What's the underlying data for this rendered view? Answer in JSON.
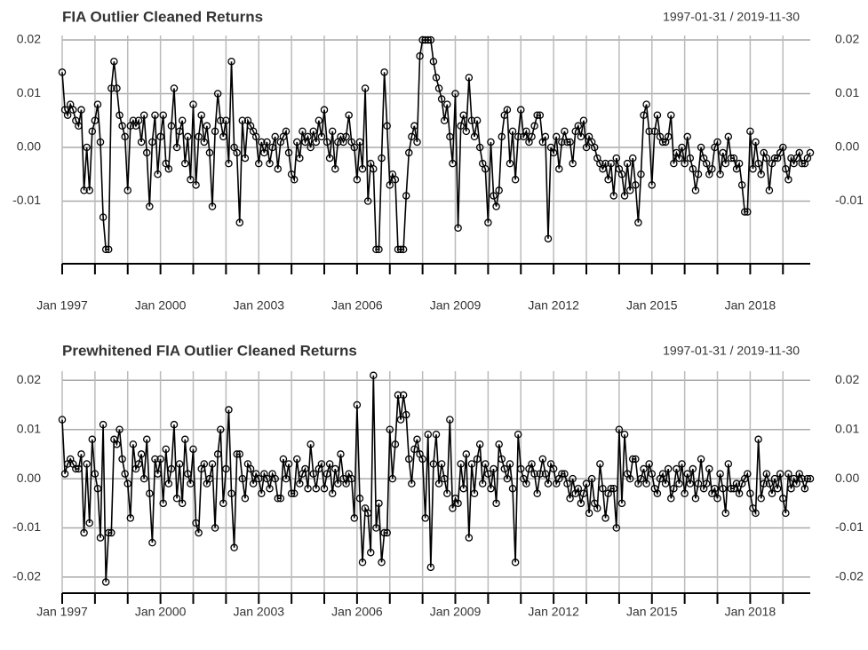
{
  "chart_data": [
    {
      "type": "line",
      "title": "FIA Outlier Cleaned Returns",
      "subtitle": "1997-01-31 / 2019-11-30",
      "marker": "circle",
      "grid": true,
      "categories": [
        "Jan 1997",
        null,
        null,
        null,
        null,
        null,
        null,
        null,
        null,
        null,
        null,
        null,
        null,
        null,
        null,
        null,
        null,
        null,
        null,
        null,
        null,
        null,
        null,
        null,
        null,
        null,
        null,
        null,
        null,
        null,
        null,
        null,
        null,
        null,
        null,
        null,
        "Jan 2000",
        null,
        null,
        null,
        null,
        null,
        null,
        null,
        null,
        null,
        null,
        null,
        null,
        null,
        null,
        null,
        null,
        null,
        null,
        null,
        null,
        null,
        null,
        null,
        null,
        null,
        null,
        null,
        null,
        null,
        null,
        null,
        null,
        null,
        null,
        null,
        "Jan 2003",
        null,
        null,
        null,
        null,
        null,
        null,
        null,
        null,
        null,
        null,
        null,
        null,
        null,
        null,
        null,
        null,
        null,
        null,
        null,
        null,
        null,
        null,
        null,
        null,
        null,
        null,
        null,
        null,
        null,
        null,
        null,
        null,
        null,
        null,
        null,
        "Jan 2006",
        null,
        null,
        null,
        null,
        null,
        null,
        null,
        null,
        null,
        null,
        null,
        null,
        null,
        null,
        null,
        null,
        null,
        null,
        null,
        null,
        null,
        null,
        null,
        null,
        null,
        null,
        null,
        null,
        null,
        null,
        null,
        null,
        null,
        null,
        null,
        "Jan 2009",
        null,
        null,
        null,
        null,
        null,
        null,
        null,
        null,
        null,
        null,
        null,
        null,
        null,
        null,
        null,
        null,
        null,
        null,
        null,
        null,
        null,
        null,
        null,
        null,
        null,
        null,
        null,
        null,
        null,
        null,
        null,
        null,
        null,
        null,
        null,
        "Jan 2012",
        null,
        null,
        null,
        null,
        null,
        null,
        null,
        null,
        null,
        null,
        null,
        null,
        null,
        null,
        null,
        null,
        null,
        null,
        null,
        null,
        null,
        null,
        null,
        null,
        null,
        null,
        null,
        null,
        null,
        null,
        null,
        null,
        null,
        null,
        null,
        "Jan 2015",
        null,
        null,
        null,
        null,
        null,
        null,
        null,
        null,
        null,
        null,
        null,
        null,
        null,
        null,
        null,
        null,
        null,
        null,
        null,
        null,
        null,
        null,
        null,
        null,
        null,
        null,
        null,
        null,
        null,
        null,
        null,
        null,
        null,
        null,
        null,
        "Jan 2018",
        null,
        null,
        null,
        null,
        null,
        null,
        null,
        null,
        null,
        null,
        null,
        null,
        null,
        null,
        null,
        null,
        null,
        null,
        null,
        null,
        null,
        null
      ],
      "series": [
        {
          "color": "#000000",
          "values": [
            0.014,
            0.007,
            0.006,
            0.008,
            0.007,
            0.005,
            0.004,
            0.007,
            -0.008,
            0.0,
            -0.008,
            0.003,
            0.005,
            0.008,
            0.001,
            -0.013,
            -0.019,
            -0.019,
            0.011,
            0.016,
            0.011,
            0.006,
            0.004,
            0.002,
            -0.008,
            0.004,
            0.005,
            0.004,
            0.005,
            0.001,
            0.006,
            -0.001,
            -0.011,
            0.001,
            0.006,
            -0.005,
            0.002,
            0.006,
            -0.003,
            -0.004,
            0.004,
            0.011,
            0.0,
            0.003,
            0.005,
            -0.003,
            0.002,
            -0.006,
            0.008,
            -0.007,
            0.002,
            0.006,
            0.001,
            0.004,
            -0.001,
            -0.011,
            0.003,
            0.01,
            0.005,
            0.002,
            0.005,
            -0.003,
            0.016,
            0.0,
            -0.001,
            -0.014,
            0.005,
            -0.002,
            0.005,
            0.004,
            0.003,
            0.002,
            -0.003,
            0.001,
            -0.001,
            0.001,
            -0.003,
            0.0,
            0.002,
            -0.004,
            0.001,
            0.002,
            0.003,
            -0.001,
            -0.005,
            -0.006,
            0.001,
            -0.002,
            0.003,
            0.001,
            0.002,
            0.0,
            0.003,
            0.001,
            0.005,
            0.002,
            0.007,
            0.001,
            -0.002,
            0.003,
            -0.004,
            0.001,
            0.002,
            0.001,
            0.002,
            0.006,
            0.001,
            0.0,
            -0.006,
            0.001,
            -0.004,
            0.011,
            -0.01,
            -0.003,
            -0.004,
            -0.019,
            -0.019,
            -0.002,
            0.014,
            0.004,
            -0.007,
            -0.005,
            -0.006,
            -0.019,
            -0.019,
            -0.019,
            -0.009,
            -0.001,
            0.002,
            0.004,
            0.001,
            0.017,
            0.02,
            0.02,
            0.02,
            0.02,
            0.016,
            0.013,
            0.011,
            0.009,
            0.005,
            0.008,
            0.002,
            -0.003,
            0.01,
            -0.015,
            0.004,
            0.006,
            0.003,
            0.013,
            0.005,
            0.002,
            0.005,
            0.0,
            -0.003,
            -0.004,
            -0.014,
            0.001,
            -0.009,
            -0.011,
            -0.008,
            0.002,
            0.006,
            0.007,
            -0.003,
            0.003,
            -0.006,
            0.002,
            0.007,
            0.002,
            0.003,
            0.001,
            0.002,
            0.004,
            0.006,
            0.006,
            0.001,
            0.002,
            -0.017,
            0.0,
            -0.001,
            0.002,
            -0.004,
            0.001,
            0.003,
            0.001,
            0.001,
            -0.003,
            0.003,
            0.004,
            0.002,
            0.005,
            0.0,
            0.002,
            0.001,
            0.0,
            -0.002,
            -0.003,
            -0.004,
            -0.003,
            -0.006,
            -0.003,
            -0.009,
            -0.002,
            -0.004,
            -0.005,
            -0.009,
            -0.003,
            -0.008,
            -0.002,
            -0.007,
            -0.014,
            -0.005,
            0.006,
            0.008,
            0.003,
            -0.007,
            0.003,
            0.006,
            0.002,
            0.001,
            0.001,
            0.002,
            0.006,
            -0.003,
            -0.001,
            -0.002,
            0.0,
            -0.003,
            0.002,
            -0.002,
            -0.004,
            -0.008,
            -0.005,
            0.0,
            -0.002,
            -0.003,
            -0.005,
            -0.004,
            0.0,
            0.001,
            -0.005,
            -0.001,
            -0.003,
            0.002,
            -0.002,
            -0.002,
            -0.004,
            -0.003,
            -0.007,
            -0.012,
            -0.012,
            0.003,
            -0.004,
            0.001,
            -0.003,
            -0.005,
            -0.001,
            -0.002,
            -0.008,
            -0.003,
            -0.002,
            -0.002,
            -0.001,
            0.0,
            -0.004,
            -0.006,
            -0.002,
            -0.003,
            -0.002,
            -0.001,
            -0.003,
            -0.003,
            -0.002,
            -0.001
          ]
        }
      ],
      "ylim": [
        -0.0205,
        0.0205
      ],
      "yticks": [
        {
          "value": -0.01,
          "label": "-0.01"
        },
        {
          "value": 0,
          "label": "0.00"
        },
        {
          "value": 0.01,
          "label": "0.01"
        },
        {
          "value": 0.02,
          "label": "0.02"
        }
      ]
    },
    {
      "type": "line",
      "title": "Prewhitened FIA Outlier Cleaned Returns",
      "subtitle": "1997-01-31 / 2019-11-30",
      "marker": "circle",
      "grid": true,
      "categories": [
        "Jan 1997",
        null,
        null,
        null,
        null,
        null,
        null,
        null,
        null,
        null,
        null,
        null,
        null,
        null,
        null,
        null,
        null,
        null,
        null,
        null,
        null,
        null,
        null,
        null,
        null,
        null,
        null,
        null,
        null,
        null,
        null,
        null,
        null,
        null,
        null,
        null,
        "Jan 2000",
        null,
        null,
        null,
        null,
        null,
        null,
        null,
        null,
        null,
        null,
        null,
        null,
        null,
        null,
        null,
        null,
        null,
        null,
        null,
        null,
        null,
        null,
        null,
        null,
        null,
        null,
        null,
        null,
        null,
        null,
        null,
        null,
        null,
        null,
        null,
        "Jan 2003",
        null,
        null,
        null,
        null,
        null,
        null,
        null,
        null,
        null,
        null,
        null,
        null,
        null,
        null,
        null,
        null,
        null,
        null,
        null,
        null,
        null,
        null,
        null,
        null,
        null,
        null,
        null,
        null,
        null,
        null,
        null,
        null,
        null,
        null,
        null,
        "Jan 2006",
        null,
        null,
        null,
        null,
        null,
        null,
        null,
        null,
        null,
        null,
        null,
        null,
        null,
        null,
        null,
        null,
        null,
        null,
        null,
        null,
        null,
        null,
        null,
        null,
        null,
        null,
        null,
        null,
        null,
        null,
        null,
        null,
        null,
        null,
        null,
        "Jan 2009",
        null,
        null,
        null,
        null,
        null,
        null,
        null,
        null,
        null,
        null,
        null,
        null,
        null,
        null,
        null,
        null,
        null,
        null,
        null,
        null,
        null,
        null,
        null,
        null,
        null,
        null,
        null,
        null,
        null,
        null,
        null,
        null,
        null,
        null,
        null,
        "Jan 2012",
        null,
        null,
        null,
        null,
        null,
        null,
        null,
        null,
        null,
        null,
        null,
        null,
        null,
        null,
        null,
        null,
        null,
        null,
        null,
        null,
        null,
        null,
        null,
        null,
        null,
        null,
        null,
        null,
        null,
        null,
        null,
        null,
        null,
        null,
        null,
        "Jan 2015",
        null,
        null,
        null,
        null,
        null,
        null,
        null,
        null,
        null,
        null,
        null,
        null,
        null,
        null,
        null,
        null,
        null,
        null,
        null,
        null,
        null,
        null,
        null,
        null,
        null,
        null,
        null,
        null,
        null,
        null,
        null,
        null,
        null,
        null,
        null,
        "Jan 2018",
        null,
        null,
        null,
        null,
        null,
        null,
        null,
        null,
        null,
        null,
        null,
        null,
        null,
        null,
        null,
        null,
        null,
        null,
        null,
        null,
        null,
        null
      ],
      "series": [
        {
          "color": "#000000",
          "values": [
            0.012,
            0.001,
            0.003,
            0.004,
            0.003,
            0.002,
            0.002,
            0.005,
            -0.011,
            0.003,
            -0.009,
            0.008,
            0.001,
            -0.002,
            -0.012,
            0.011,
            -0.021,
            -0.011,
            -0.011,
            0.008,
            0.007,
            0.01,
            0.004,
            0.001,
            -0.001,
            -0.008,
            0.007,
            0.002,
            0.003,
            0.005,
            0.0,
            0.008,
            -0.003,
            -0.013,
            0.004,
            0.001,
            0.004,
            -0.005,
            0.006,
            -0.001,
            0.002,
            0.011,
            -0.004,
            0.003,
            -0.005,
            0.008,
            0.001,
            -0.001,
            0.006,
            -0.009,
            -0.011,
            0.002,
            0.003,
            -0.001,
            0.0,
            0.003,
            -0.01,
            0.005,
            0.01,
            -0.005,
            0.002,
            0.014,
            -0.003,
            -0.014,
            0.005,
            0.005,
            0.0,
            -0.004,
            0.003,
            0.002,
            -0.001,
            0.001,
            0.0,
            -0.003,
            0.001,
            0.0,
            -0.002,
            0.001,
            0.0,
            -0.004,
            -0.004,
            0.004,
            0.0,
            0.003,
            -0.003,
            -0.003,
            0.004,
            -0.001,
            0.001,
            0.002,
            -0.002,
            0.007,
            0.001,
            -0.002,
            0.002,
            0.003,
            -0.002,
            0.001,
            0.003,
            -0.003,
            0.002,
            -0.001,
            0.005,
            0.0,
            -0.001,
            0.001,
            0.0,
            -0.008,
            0.015,
            -0.004,
            -0.017,
            -0.006,
            -0.007,
            -0.015,
            0.021,
            -0.01,
            -0.005,
            -0.017,
            -0.011,
            -0.011,
            0.01,
            0.0,
            0.007,
            0.017,
            0.012,
            0.017,
            0.013,
            0.004,
            -0.001,
            0.006,
            0.008,
            0.005,
            0.004,
            -0.008,
            0.009,
            -0.018,
            0.003,
            0.009,
            -0.001,
            0.003,
            0.0,
            -0.003,
            0.012,
            -0.006,
            -0.004,
            -0.005,
            0.003,
            -0.002,
            0.005,
            -0.012,
            0.003,
            -0.003,
            0.004,
            0.007,
            -0.001,
            0.003,
            0.001,
            -0.002,
            0.002,
            -0.005,
            0.007,
            0.004,
            0.002,
            0.0,
            0.003,
            -0.002,
            -0.017,
            0.009,
            0.002,
            0.0,
            -0.001,
            0.002,
            0.003,
            0.001,
            -0.003,
            0.001,
            0.004,
            0.001,
            -0.001,
            0.003,
            0.002,
            -0.001,
            0.0,
            0.001,
            0.001,
            -0.001,
            -0.004,
            0.0,
            -0.003,
            -0.002,
            -0.005,
            -0.003,
            -0.001,
            -0.007,
            0.0,
            -0.005,
            -0.006,
            0.003,
            -0.002,
            -0.008,
            -0.003,
            -0.002,
            -0.002,
            -0.01,
            0.01,
            -0.005,
            0.009,
            0.001,
            0.0,
            0.004,
            0.004,
            -0.001,
            0.0,
            0.002,
            -0.001,
            0.003,
            0.001,
            -0.002,
            -0.003,
            0.0,
            0.001,
            -0.001,
            0.002,
            -0.004,
            -0.002,
            0.002,
            -0.001,
            0.003,
            -0.003,
            0.001,
            -0.001,
            0.002,
            -0.004,
            -0.001,
            0.004,
            -0.002,
            -0.001,
            0.002,
            -0.003,
            -0.002,
            -0.004,
            0.001,
            -0.002,
            -0.007,
            0.003,
            -0.002,
            -0.002,
            -0.001,
            -0.003,
            -0.001,
            0.0,
            0.001,
            -0.003,
            -0.006,
            -0.007,
            0.008,
            -0.004,
            -0.001,
            0.001,
            -0.001,
            -0.003,
            0.0,
            -0.002,
            0.001,
            -0.004,
            -0.007,
            0.001,
            -0.002,
            0.0,
            -0.001,
            0.001,
            0.0,
            -0.002,
            0.0,
            0.0
          ]
        }
      ],
      "ylim": [
        -0.022,
        0.0215
      ],
      "yticks": [
        {
          "value": -0.02,
          "label": "-0.02"
        },
        {
          "value": -0.01,
          "label": "-0.01"
        },
        {
          "value": 0,
          "label": "0.00"
        },
        {
          "value": 0.01,
          "label": "0.01"
        },
        {
          "value": 0.02,
          "label": "0.02"
        }
      ]
    }
  ]
}
